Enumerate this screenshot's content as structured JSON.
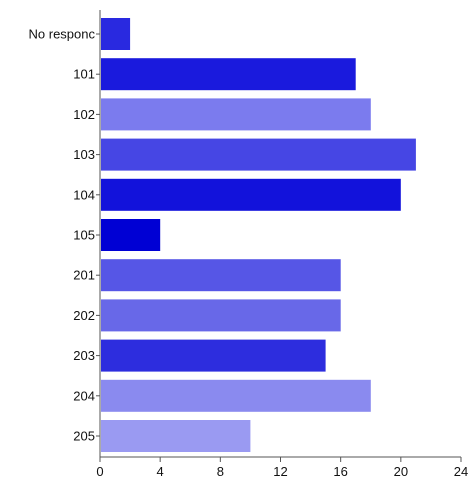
{
  "chart_data": {
    "type": "bar",
    "orientation": "horizontal",
    "title": "",
    "xlabel": "",
    "ylabel": "",
    "categories": [
      "No responc",
      "101",
      "102",
      "103",
      "104",
      "105",
      "201",
      "202",
      "203",
      "204",
      "205"
    ],
    "values": [
      2,
      17,
      18,
      21,
      20,
      4,
      16,
      16,
      15,
      18,
      10
    ],
    "colors": [
      "#2929e0",
      "#1a1add",
      "#7b7bee",
      "#4646e4",
      "#1212db",
      "#0000d4",
      "#5656e6",
      "#6868e8",
      "#2d2dde",
      "#8a8aef",
      "#9a9af2"
    ],
    "xlim": [
      0,
      24
    ],
    "xticks": [
      "0",
      "4",
      "8",
      "12",
      "16",
      "20",
      "24"
    ],
    "grid": false,
    "legend": "none"
  }
}
